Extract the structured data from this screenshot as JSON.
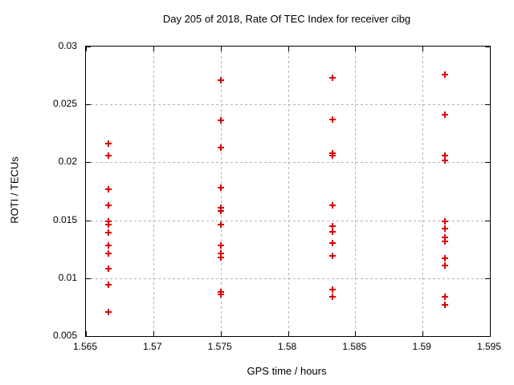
{
  "chart_data": {
    "type": "scatter",
    "title": "Day 205 of 2018, Rate Of TEC Index for receiver cibg",
    "xlabel": "GPS time / hours",
    "ylabel": "ROTI / TECUs",
    "xlim": [
      1.565,
      1.595
    ],
    "ylim": [
      0.005,
      0.03
    ],
    "xticks": [
      {
        "v": 1.565,
        "label": "1.565"
      },
      {
        "v": 1.57,
        "label": "1.57"
      },
      {
        "v": 1.575,
        "label": "1.575"
      },
      {
        "v": 1.58,
        "label": "1.58"
      },
      {
        "v": 1.585,
        "label": "1.585"
      },
      {
        "v": 1.59,
        "label": "1.59"
      },
      {
        "v": 1.595,
        "label": "1.595"
      }
    ],
    "yticks": [
      {
        "v": 0.005,
        "label": "0.005"
      },
      {
        "v": 0.01,
        "label": "0.01"
      },
      {
        "v": 0.015,
        "label": "0.015"
      },
      {
        "v": 0.02,
        "label": "0.02"
      },
      {
        "v": 0.025,
        "label": "0.025"
      },
      {
        "v": 0.03,
        "label": "0.03"
      }
    ],
    "grid": true,
    "legend_position": "none",
    "marker": "plus",
    "marker_color": "#dd0000",
    "frame_color": "#000000",
    "grid_color": "#b4b4b4",
    "series": [
      {
        "name": "ROTI",
        "clusters": [
          {
            "x": 1.56667,
            "y": [
              0.0216,
              0.0206,
              0.0177,
              0.0163,
              0.0149,
              0.0146,
              0.0139,
              0.0128,
              0.0121,
              0.0108,
              0.0094,
              0.0071
            ]
          },
          {
            "x": 1.575,
            "y": [
              0.0271,
              0.0236,
              0.0213,
              0.0178,
              0.0161,
              0.0158,
              0.0146,
              0.0128,
              0.0121,
              0.0118,
              0.0088,
              0.0086
            ]
          },
          {
            "x": 1.58333,
            "y": [
              0.0273,
              0.0237,
              0.0208,
              0.0206,
              0.0163,
              0.0145,
              0.014,
              0.013,
              0.0119,
              0.009,
              0.0084
            ]
          },
          {
            "x": 1.59167,
            "y": [
              0.0276,
              0.0241,
              0.0206,
              0.0202,
              0.0149,
              0.0143,
              0.0135,
              0.0132,
              0.0117,
              0.0111,
              0.0084,
              0.0077
            ]
          }
        ]
      }
    ]
  }
}
